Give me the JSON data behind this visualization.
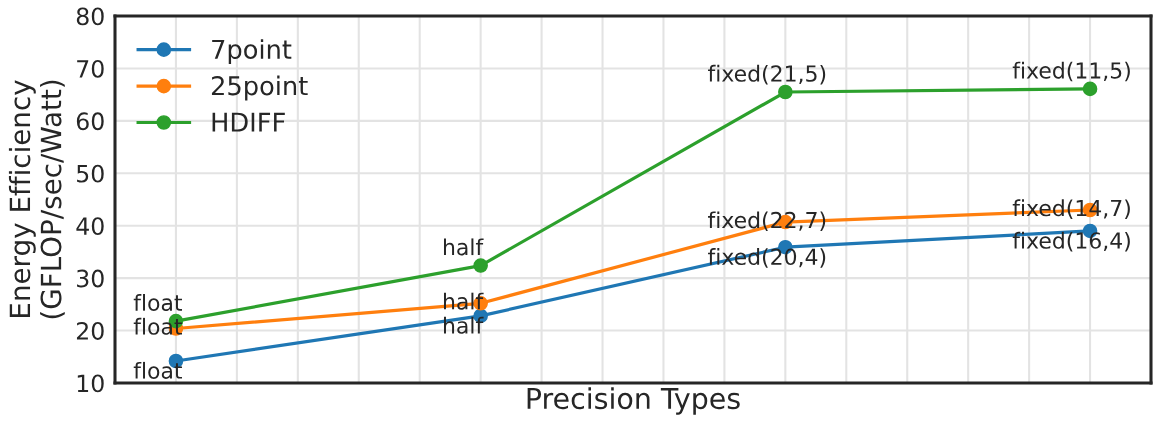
{
  "chart_data": {
    "type": "line",
    "xlabel": "Precision Types",
    "ylabel": "Energy Efficiency\n(GFLOP/sec/Watt)",
    "categories": [
      null,
      null,
      null,
      null
    ],
    "ylim": [
      10,
      80
    ],
    "yticks": [
      10,
      20,
      30,
      40,
      50,
      60,
      70,
      80
    ],
    "grid": true,
    "legend": "top left",
    "marker": "circle",
    "line_style": "solid",
    "tick_labels": "y",
    "series": [
      {
        "name": "7point",
        "color": "#1f77b4",
        "values": [
          14.2,
          22.8,
          35.9,
          39.0
        ],
        "value_labels": [
          "float",
          "half",
          "fixed(20,4)",
          "fixed(16,4)"
        ]
      },
      {
        "name": "25point",
        "color": "#ff7f0e",
        "values": [
          20.4,
          25.2,
          40.7,
          43.0
        ],
        "value_labels": [
          "float",
          "half",
          "fixed(22,7)",
          "fixed(14,7)"
        ]
      },
      {
        "name": "HDIFF",
        "color": "#2ca02c",
        "values": [
          21.8,
          32.4,
          65.5,
          66.1
        ],
        "value_labels": [
          "float",
          "half",
          "fixed(21,5)",
          "fixed(11,5)"
        ]
      }
    ]
  }
}
